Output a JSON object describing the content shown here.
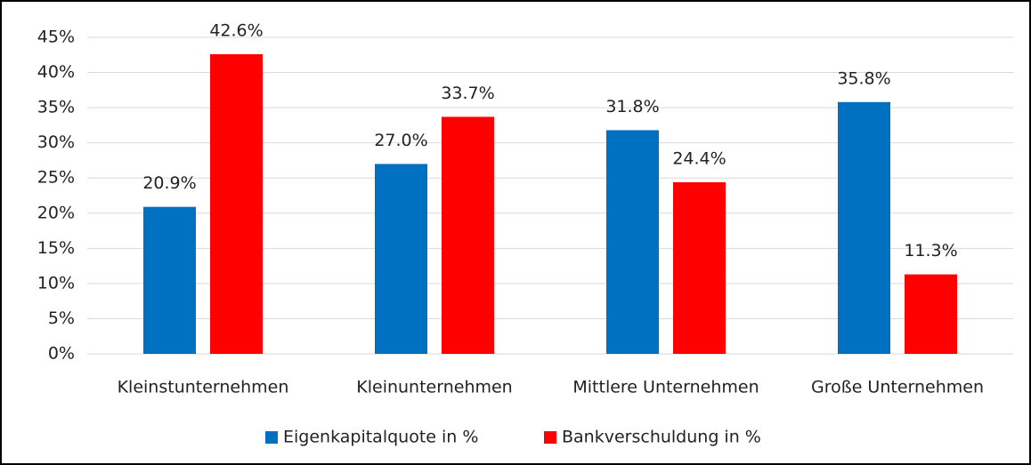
{
  "chart_data": {
    "type": "bar",
    "categories": [
      "Kleinstunternehmen",
      "Kleinunternehmen",
      "Mittlere Unternehmen",
      "Große Unternehmen"
    ],
    "series": [
      {
        "name": "Eigenkapitalquote in %",
        "color": "#0070c0",
        "values": [
          20.9,
          27.0,
          31.8,
          35.8
        ],
        "value_labels": [
          "20.9%",
          "27.0%",
          "31.8%",
          "35.8%"
        ]
      },
      {
        "name": "Bankverschuldung in %",
        "color": "#ff0000",
        "values": [
          42.6,
          33.7,
          24.4,
          11.3
        ],
        "value_labels": [
          "42.6%",
          "33.7%",
          "24.4%",
          "11.3%"
        ]
      }
    ],
    "ylim": [
      0,
      45
    ],
    "yticks": [
      {
        "value": 0,
        "label": "0%"
      },
      {
        "value": 5,
        "label": "5%"
      },
      {
        "value": 10,
        "label": "10%"
      },
      {
        "value": 15,
        "label": "15%"
      },
      {
        "value": 20,
        "label": "20%"
      },
      {
        "value": 25,
        "label": "25%"
      },
      {
        "value": 30,
        "label": "30%"
      },
      {
        "value": 35,
        "label": "35%"
      },
      {
        "value": 40,
        "label": "40%"
      },
      {
        "value": 45,
        "label": "45%"
      }
    ],
    "grid": true,
    "legend": "bottom"
  }
}
